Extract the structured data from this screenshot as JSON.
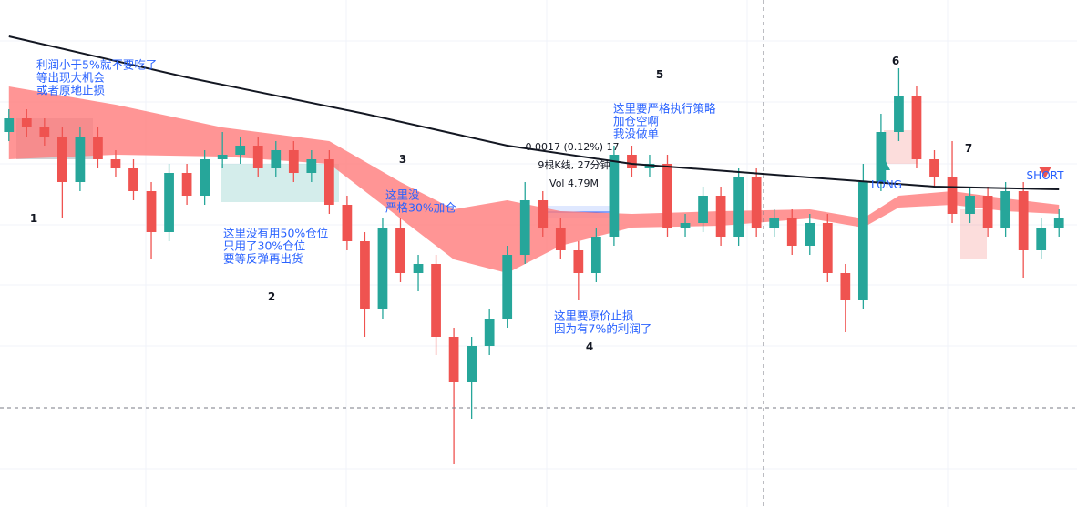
{
  "chart_data": {
    "type": "candlestick",
    "ylim": [
      0,
      557
    ],
    "xlim": [
      -0.5,
      59.5
    ],
    "up_color": "#26a69a",
    "down_color": "#ef5350",
    "open": [
      412,
      427,
      417,
      407,
      357,
      407,
      382,
      372,
      347,
      302,
      367,
      342,
      382,
      387,
      397,
      372,
      392,
      367,
      382,
      332,
      292,
      217,
      307,
      257,
      267,
      187,
      137,
      177,
      207,
      277,
      337,
      307,
      282,
      257,
      297,
      387,
      372,
      377,
      307,
      312,
      342,
      297,
      362,
      307,
      317,
      287,
      312,
      257,
      227,
      357,
      412,
      452,
      382,
      362,
      322,
      342,
      307,
      347,
      282,
      307
    ],
    "high": [
      437,
      437,
      427,
      417,
      417,
      417,
      392,
      382,
      357,
      377,
      377,
      392,
      412,
      407,
      407,
      402,
      402,
      392,
      392,
      342,
      302,
      317,
      317,
      277,
      277,
      197,
      187,
      217,
      287,
      357,
      347,
      317,
      292,
      307,
      397,
      397,
      387,
      387,
      322,
      352,
      352,
      372,
      372,
      327,
      327,
      322,
      322,
      267,
      377,
      432,
      482,
      462,
      392,
      402,
      352,
      352,
      357,
      357,
      317,
      327
    ],
    "low": [
      402,
      407,
      397,
      317,
      347,
      372,
      362,
      337,
      272,
      292,
      332,
      332,
      372,
      377,
      362,
      362,
      357,
      357,
      322,
      282,
      187,
      207,
      247,
      237,
      167,
      47,
      97,
      167,
      197,
      267,
      297,
      272,
      227,
      247,
      287,
      362,
      362,
      297,
      297,
      302,
      287,
      287,
      297,
      297,
      277,
      277,
      247,
      192,
      217,
      347,
      402,
      372,
      352,
      312,
      312,
      297,
      297,
      252,
      272,
      297
    ],
    "close": [
      427,
      417,
      407,
      357,
      407,
      382,
      372,
      347,
      302,
      367,
      342,
      382,
      387,
      397,
      372,
      392,
      367,
      382,
      332,
      292,
      217,
      307,
      257,
      267,
      187,
      137,
      177,
      207,
      277,
      337,
      307,
      282,
      257,
      297,
      387,
      372,
      377,
      307,
      312,
      342,
      297,
      362,
      307,
      317,
      287,
      312,
      257,
      227,
      357,
      412,
      452,
      382,
      362,
      322,
      342,
      307,
      347,
      282,
      307,
      317
    ],
    "ma": {
      "color": "#131722",
      "x": [
        0,
        10,
        20,
        28,
        35,
        45,
        52,
        59
      ],
      "values": [
        517,
        472,
        432,
        397,
        377,
        362,
        352,
        349
      ]
    },
    "band": {
      "color": "#ff7a7a",
      "x": [
        0,
        6,
        12,
        18,
        22,
        25,
        28,
        31,
        35,
        40,
        45,
        48,
        50,
        53,
        56,
        59
      ],
      "upper": [
        462,
        442,
        417,
        402,
        357,
        327,
        337,
        325,
        322,
        325,
        327,
        317,
        342,
        347,
        339,
        332
      ],
      "lower": [
        382,
        387,
        385,
        377,
        317,
        272,
        257,
        287,
        307,
        309,
        317,
        307,
        329,
        332,
        325,
        322
      ]
    }
  },
  "notes": [
    [
      "利润小于5%就不要吃了",
      "等出现大机会",
      "或者原地止损"
    ],
    [
      "这里没有用50%仓位",
      "只用了30%仓位",
      "要等反弹再出货"
    ],
    [
      "这里没",
      "严格30%加仓"
    ],
    [
      "这里要原价止损",
      "因为有7%的利润了"
    ],
    [
      "这里要严格执行策略",
      "加仓空啊",
      "我没做单"
    ]
  ],
  "numbers": [
    "1",
    "2",
    "3",
    "4",
    "5",
    "6",
    "7"
  ],
  "measure": [
    "0.0017 (0.12%) 17",
    "9根K线, 27分钟",
    "Vol 4.79M"
  ],
  "signals": [
    "LONG",
    "SHORT"
  ]
}
